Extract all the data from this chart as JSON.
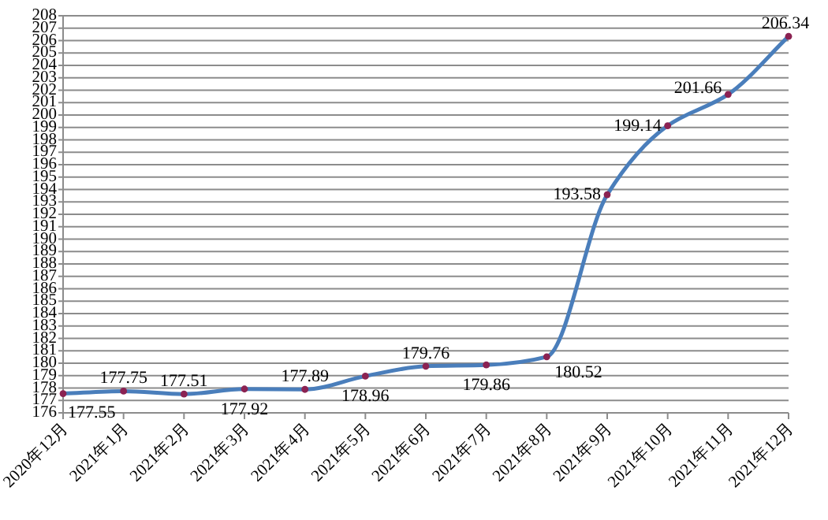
{
  "chart_data": {
    "type": "line",
    "categories": [
      "2020年12月",
      "2021年1月",
      "2021年2月",
      "2021年3月",
      "2021年4月",
      "2021年5月",
      "2021年6月",
      "2021年7月",
      "2021年8月",
      "2021年9月",
      "2021年10月",
      "2021年11月",
      "2021年12月"
    ],
    "series": [
      {
        "color": "#4a7ebb",
        "values": [
          177.55,
          177.75,
          177.51,
          177.92,
          177.89,
          178.96,
          179.76,
          179.86,
          180.52,
          193.58,
          199.14,
          201.66,
          206.34
        ]
      }
    ],
    "ylim": [
      176,
      208
    ],
    "yticks": [
      176,
      177,
      178,
      179,
      180,
      181,
      182,
      183,
      184,
      185,
      186,
      187,
      188,
      189,
      190,
      191,
      192,
      193,
      194,
      195,
      196,
      197,
      198,
      199,
      200,
      201,
      202,
      203,
      204,
      205,
      206,
      207,
      208
    ],
    "grid": "y",
    "marker": "circle",
    "line_style": "solid",
    "data_labels": true
  }
}
